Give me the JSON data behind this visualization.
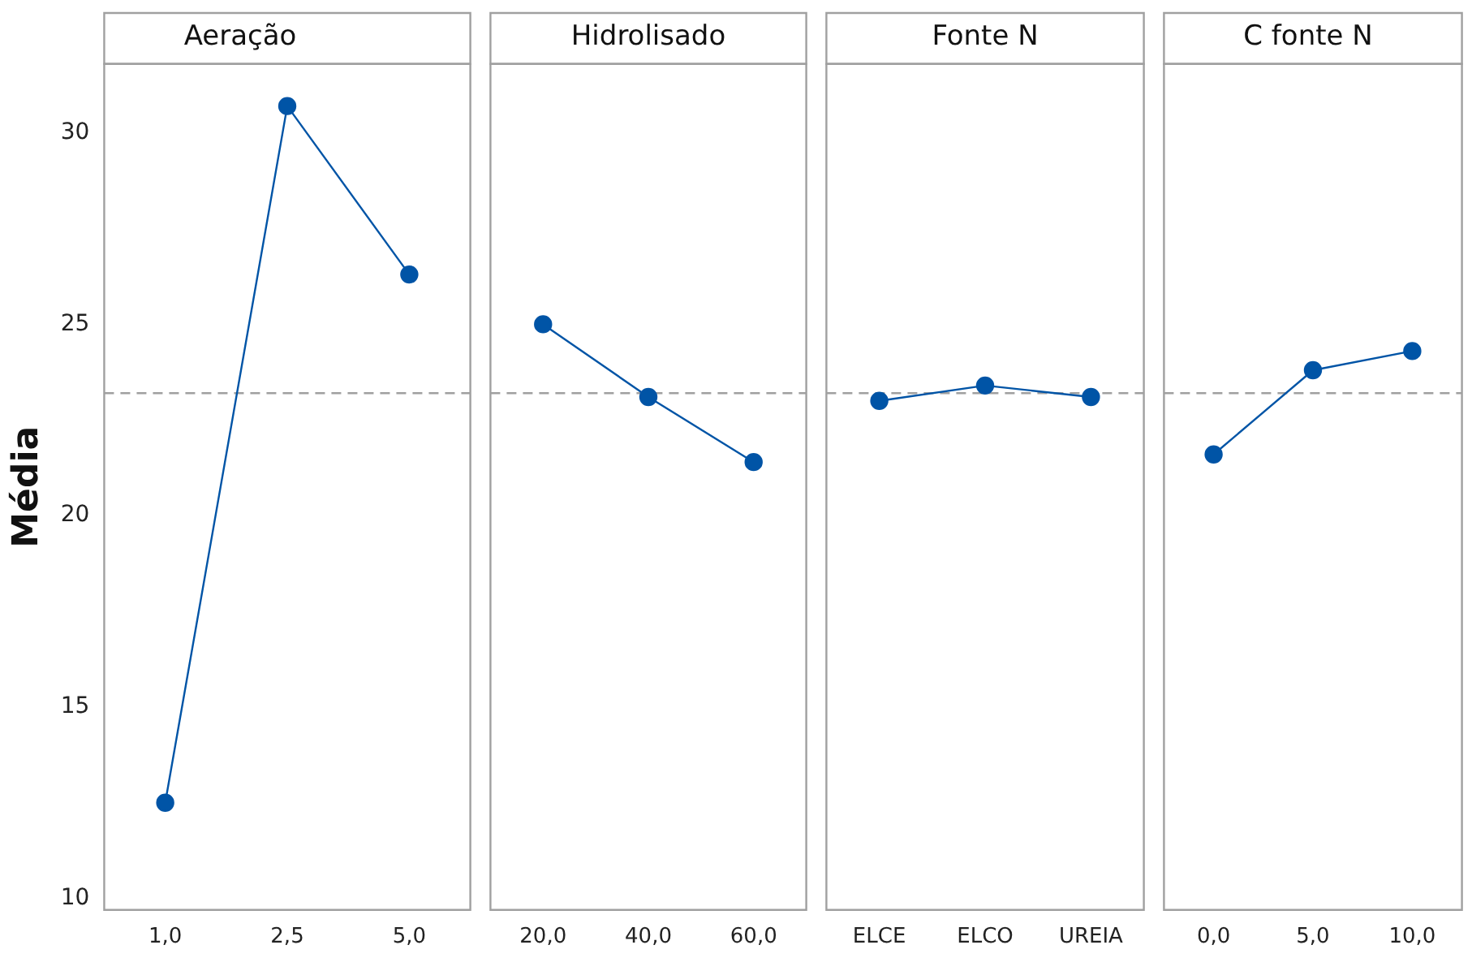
{
  "chart_data": [
    {
      "type": "line",
      "title": "Aeração",
      "ylabel": "Média",
      "categories": [
        "1,0",
        "2,5",
        "5,0"
      ],
      "series": [
        {
          "color": "#0054a6",
          "values": [
            12.5,
            30.7,
            26.3
          ]
        }
      ],
      "marker": "circle",
      "ylim": [
        9.7,
        31.8
      ],
      "yticks": [
        10,
        15,
        20,
        25,
        30
      ],
      "ref_lines": [
        {
          "axis": "y",
          "value": 23.2,
          "color": "#a0a0a0",
          "line_style": "dashed"
        }
      ]
    },
    {
      "type": "line",
      "title": "Hidrolisado",
      "categories": [
        "20,0",
        "40,0",
        "60,0"
      ],
      "series": [
        {
          "color": "#0054a6",
          "values": [
            25.0,
            23.1,
            21.4
          ]
        }
      ],
      "marker": "circle",
      "ylim": [
        9.7,
        31.8
      ],
      "yticks": [
        10,
        15,
        20,
        25,
        30
      ],
      "tick_labels": "x",
      "ref_lines": [
        {
          "axis": "y",
          "value": 23.2,
          "color": "#a0a0a0",
          "line_style": "dashed"
        }
      ]
    },
    {
      "type": "line",
      "title": "Fonte N",
      "categories": [
        "ELCE",
        "ELCO",
        "UREIA"
      ],
      "series": [
        {
          "color": "#0054a6",
          "values": [
            23.0,
            23.4,
            23.1
          ]
        }
      ],
      "marker": "circle",
      "ylim": [
        9.7,
        31.8
      ],
      "yticks": [
        10,
        15,
        20,
        25,
        30
      ],
      "tick_labels": "x",
      "ref_lines": [
        {
          "axis": "y",
          "value": 23.2,
          "color": "#a0a0a0",
          "line_style": "dashed"
        }
      ]
    },
    {
      "type": "line",
      "title": "C fonte N",
      "categories": [
        "0,0",
        "5,0",
        "10,0"
      ],
      "series": [
        {
          "color": "#0054a6",
          "values": [
            21.6,
            23.8,
            24.3
          ]
        }
      ],
      "marker": "circle",
      "ylim": [
        9.7,
        31.8
      ],
      "yticks": [
        10,
        15,
        20,
        25,
        30
      ],
      "tick_labels": "x",
      "ref_lines": [
        {
          "axis": "y",
          "value": 23.2,
          "color": "#a0a0a0",
          "line_style": "dashed"
        }
      ]
    }
  ]
}
